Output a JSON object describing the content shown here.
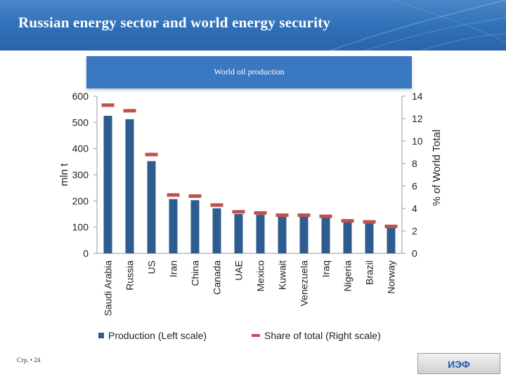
{
  "header": {
    "title": "Russian energy sector and world energy security"
  },
  "footer": {
    "page_label": "Стр. • 24",
    "logo_text": "ИЭФ"
  },
  "colors": {
    "header": "#2f6fb8",
    "bar": "#2e5c8f",
    "share": "#c0504d"
  },
  "chart_data": {
    "type": "bar",
    "title": "World oil production",
    "categories": [
      "Saudi Arabia",
      "Russia",
      "US",
      "Iran",
      "China",
      "Canada",
      "UAE",
      "Mexico",
      "Kuwait",
      "Venezuela",
      "Iraq",
      "Nigeria",
      "Brazil",
      "Norway"
    ],
    "series": [
      {
        "name": "Production (Left scale)",
        "kind": "bar",
        "axis": "left",
        "values": [
          525,
          512,
          352,
          207,
          203,
          172,
          150,
          147,
          141,
          140,
          138,
          118,
          115,
          98
        ]
      },
      {
        "name": "Share of total (Right scale)",
        "kind": "dash",
        "axis": "right",
        "values": [
          13.2,
          12.7,
          8.8,
          5.2,
          5.1,
          4.3,
          3.7,
          3.6,
          3.4,
          3.4,
          3.3,
          2.9,
          2.8,
          2.4
        ]
      }
    ],
    "ylabel": "mln t",
    "y2label": "% of World Total",
    "ylim": [
      0,
      600
    ],
    "yticks": [
      0,
      100,
      200,
      300,
      400,
      500,
      600
    ],
    "y2lim": [
      0,
      14
    ],
    "y2ticks": [
      0,
      2,
      4,
      6,
      8,
      10,
      12,
      14
    ],
    "grid": false,
    "legend": "bottom"
  }
}
